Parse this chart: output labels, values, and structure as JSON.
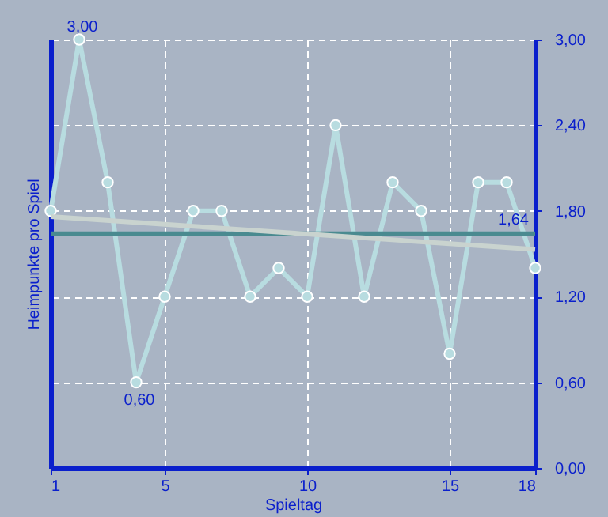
{
  "chart_data": {
    "type": "line",
    "xlabel": "Spieltag",
    "ylabel": "Heimpunkte pro Spiel",
    "x": [
      1,
      2,
      3,
      4,
      5,
      6,
      7,
      8,
      9,
      10,
      11,
      12,
      13,
      14,
      15,
      16,
      17,
      18
    ],
    "series": [
      {
        "color": "#b8dce0",
        "values": [
          1.8,
          3.0,
          2.0,
          0.6,
          1.2,
          1.8,
          1.8,
          1.2,
          1.4,
          1.2,
          2.4,
          1.2,
          2.0,
          1.8,
          0.8,
          2.0,
          2.0,
          1.4
        ],
        "marker": "circle"
      },
      {
        "type": "line",
        "color": "#c9d3cf",
        "x": [
          1,
          18
        ],
        "values": [
          1.76,
          1.53
        ],
        "marker": "none"
      }
    ],
    "xlim": [
      1,
      18
    ],
    "xticks": [
      1,
      5,
      10,
      15,
      18
    ],
    "ylim": [
      0,
      3
    ],
    "yticks": [
      {
        "value": 0,
        "label": "0,00"
      },
      {
        "value": 0.6,
        "label": "0,60"
      },
      {
        "value": 1.2,
        "label": "1,20"
      },
      {
        "value": 1.8,
        "label": "1,80"
      },
      {
        "value": 2.4,
        "label": "2,40"
      },
      {
        "value": 3,
        "label": "3,00"
      }
    ],
    "ref_lines": [
      {
        "axis": "y",
        "value": 1.64,
        "label": "1,64",
        "color": "#4a8a90"
      }
    ],
    "annotations": [
      {
        "text": "3,00",
        "x": 2,
        "y": 3.0
      },
      {
        "text": "0,60",
        "x": 4,
        "y": 0.6
      }
    ],
    "grid": true,
    "line_style": "solid"
  }
}
